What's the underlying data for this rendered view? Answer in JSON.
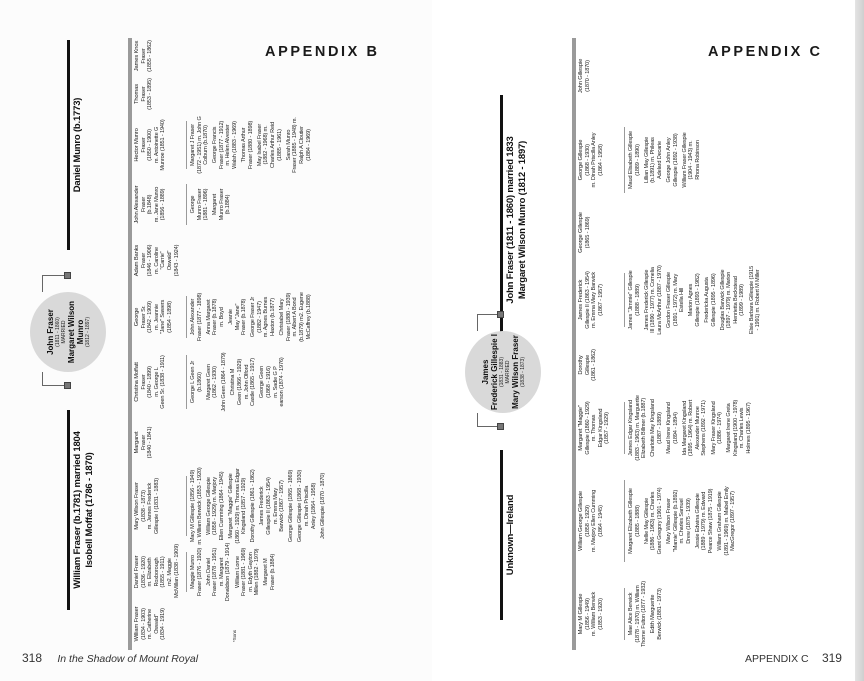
{
  "left_page": {
    "heading": "APPENDIX B",
    "page_number": "318",
    "running_title": "In the Shadow of Mount Royal",
    "footnote": "*Sons",
    "chart": {
      "paternal_parents": [
        "William Fraser (b.1781) married 1804",
        "Isobell Moffat (1786 - 1870)"
      ],
      "maternal_parents": [
        "Daniel Munro (b.1773)"
      ],
      "couple": {
        "husband": "John Fraser",
        "husband_dates": "(1811 - 1860)",
        "married": "MARRIED",
        "wife_line1": "Margaret Wilson",
        "wife_line2": "Munro",
        "wife_dates": "(1812 - 1897)"
      },
      "children": [
        {
          "lines": [
            "William Fraser",
            "(1834 - 1903)",
            "m. Catherine",
            "Oswald\"",
            "(1834 - 1919)"
          ],
          "grandchildren": []
        },
        {
          "lines": [
            "Daniel Fraser",
            "(1836 - 1920)",
            "m. Elizabeth",
            "Roxborough",
            "(1855 - 1911)",
            "m2. Maggie",
            "McMillan (1838 - 1909)"
          ],
          "grandchildren": [
            [
              "Maggie Munro",
              "Fraser (1876 - 1920)"
            ],
            [
              "John Daniel",
              "Fraser (1878 - 1951)",
              "m. Margaret",
              "Donaldson (1879 - 1914)"
            ],
            [
              "William Lorne",
              "Fraser (1881 - 1969)",
              "m. Edyth Gayton",
              "Millen (1882 - 1979)"
            ],
            [
              "Margaret M",
              "Fraser (b.1884)"
            ]
          ]
        },
        {
          "lines": [
            "Mary Wilson Fraser",
            "(1838 - 1873)",
            "m. James Frederick",
            "Gillespie I (1831 - 1883)"
          ],
          "grandchildren": [
            [
              "Mary M Gillespie (1856 - 1949)",
              "m. William Berwick (1853 - 1920)"
            ],
            [
              "William George Gillespie",
              "(1858 - 1929) m. Marjory",
              "Ellen Cumming (1864 - 1945)"
            ],
            [
              "Margaret \"Maggie\" Gillespie",
              "(1860 - 1929) m. Thomas Edgar",
              "Kingsland (1857 - 1929)"
            ],
            [
              "Dorothy Gillespie (1861 - 1862)"
            ],
            [
              "James Frederick",
              "Gillespie II (1863 - 1954)",
              "m. Emma Mary",
              "Barwick (1867 - 1957)"
            ],
            [
              "George Gillespie (1865 - 1869)"
            ],
            [
              "George Gillespie (1868 - 1930)",
              "m. Dinah Priscilla",
              "Anley (1864 - 1958)"
            ],
            [
              "John Gillespie (1870 - 1870)"
            ]
          ]
        },
        {
          "lines": [
            "Margaret",
            "Fraser",
            "(1840 - 1841)"
          ],
          "grandchildren": []
        },
        {
          "lines": [
            "Christina Moffatt",
            "Fraser",
            "(1840 - 1899)",
            "m. George L",
            "Geen Sr. (1838 - 1911)"
          ],
          "grandchildren": [
            [
              "George L Geen Jr",
              "(b.1860)"
            ],
            [
              "Margaret Geen",
              "(1862 - 1930)"
            ],
            [
              "John Geen (1864 - 1879)"
            ],
            [
              "Christina M",
              "Geen (1866 - 1929)",
              "m. John Olford",
              "Castle (1865 - 1917)"
            ],
            [
              "George Geen",
              "(1868 - 1916)",
              "m. Sadie G P",
              "earson (1874 - 1976)"
            ]
          ]
        },
        {
          "lines": [
            "George",
            "Fraser Sr.",
            "(1842 - 1909)",
            "m. Jeannie",
            "\"Jane\" Sawers",
            "(1854 - 1898)"
          ],
          "grandchildren": [
            [
              "John Alexander",
              "Fraser (1877 - 1898)"
            ],
            [
              "Anna Margaret",
              "Fraser (b.1878)",
              "m. Boyd"
            ],
            [
              "Jeanie",
              "May \"Jane\"",
              "Fraser (b.1878)"
            ],
            [
              "George Fraser Jr",
              "(1882 - 1947)",
              "m. Agnes Burnes",
              "Haxton (b.1877)"
            ],
            [
              "Christabel Mary",
              "Fraser (1880 - 1939)",
              "m. Albert A Bond",
              "(b.1879) m2. Eugene",
              "McCaffrey (b.1888)"
            ]
          ]
        },
        {
          "lines": [
            "Adam Banks",
            "Fraser",
            "(1846 - 1906)",
            "m. Caroline",
            "\"Carrie\"",
            "Oswald\"",
            "(1843 - 1924)"
          ],
          "grandchildren": []
        },
        {
          "lines": [
            "John Alexander",
            "Fraser",
            "(b.1848)",
            "m. Jane Munro",
            "(1856 - 1889)"
          ],
          "grandchildren": [
            [
              "George",
              "Munro Fraser",
              "(1881 - 1896)"
            ],
            [
              "Margaret",
              "Munro Fraser",
              "(b.1884)"
            ]
          ]
        },
        {
          "lines": [
            "Hector Munro",
            "Fraser",
            "(1850 - 1900)",
            "m. Antoinette G",
            "Munroe (1851 - 1940)"
          ],
          "grandchildren": [
            [
              "Margaret J Fraser",
              "(1872 - 1951) m. John G",
              "Colburn (b.1870)"
            ],
            [
              "George Francis",
              "Fraser (1877 - 1912)",
              "m. Helen Alvester",
              "Walsh (1883 - 1969)"
            ],
            [
              "Thomas Arthur",
              "Fraser (1880 - 1898)"
            ],
            [
              "May Isabel Fraser",
              "(1882 - 1968) m.",
              "Charles Arthur Reid",
              "(1885 - 1961)"
            ],
            [
              "Sarah Munro",
              "Fraser (1885 - 1948) m.",
              "Ralph A Cloutier",
              "(1884 - 1969)"
            ]
          ]
        },
        {
          "lines": [
            "Thomas",
            "Fraser",
            "(1853 - 1895)"
          ],
          "grandchildren": []
        },
        {
          "lines": [
            "James Knox",
            "Fraser",
            "(1855 - 1862)"
          ],
          "grandchildren": []
        }
      ]
    }
  },
  "right_page": {
    "heading": "APPENDIX C",
    "page_number": "319",
    "running_title": "APPENDIX C",
    "chart": {
      "paternal_parents": [
        "Unknown—Ireland"
      ],
      "maternal_parents": [
        "John Fraser (1811 - 1860) married 1833",
        "Margaret Wilson Munro (1812 - 1897)"
      ],
      "couple": {
        "husband": "James",
        "husband_line2": "Frederick Gillespie I",
        "husband_dates": "(1831 - 1883)",
        "married": "MARRIED",
        "wife_line1": "Mary Wilson Fraser",
        "wife_dates": "(1838 - 1873)"
      },
      "children": [
        {
          "lines": [
            "Mary M Gillespie",
            "(1856 - 1949)",
            "m. William Berwick",
            "(1853 - 1920)"
          ],
          "grandchildren": [
            [
              "Mae Alice Berwick",
              "(1878 - 1970) m. William",
              "Thorne Fulton (1877 - 1932)"
            ],
            [
              "Edith Marguerite",
              "Berwick (1881 - 1973)"
            ]
          ]
        },
        {
          "lines": [
            "William George Gillespie",
            "(1858 - 1929)",
            "m. Marjory Ellen Cumming",
            "(1864 - 1945)"
          ],
          "grandchildren": [
            [
              "Margaret Elizabeth Gillespie",
              "(1885 - 1888)"
            ],
            [
              "Nellie May Gillespie",
              "(1886 - 1963) m. Charles",
              "Grant Gregory (1901 - 1974)"
            ],
            [
              "Mary Wilson Fraser",
              "\"Mamie\" Gillespie (b.1892)",
              "m. Charles Samuel",
              "Drew (1875 - 1939)"
            ],
            [
              "Jessie Edwina Gillespie",
              "(1889 - 1979) m. Edward",
              "Pearce Shaw (1875 - 1919)"
            ],
            [
              "William Graham Gillespie",
              "(1891 - 1969) m. Mabel Emily",
              "MacGregor (1897 - 1957)"
            ]
          ]
        },
        {
          "lines": [
            "Margaret \"Maggie\"",
            "Gillespie (1860 - 1929)",
            "m. Thomas",
            "Edgar Kingsland",
            "(1857 - 1929)"
          ],
          "grandchildren": [
            [
              "James Edgar Kingsland",
              "(1883 - 1963) m. Marguerite",
              "Elizabeth Billmer (b.1887)"
            ],
            [
              "Charlotte May Kingsland",
              "(1887 - 1889)"
            ],
            [
              "Maud Irene Kingsland",
              "(1894 - 1894)"
            ],
            [
              "Ida Margaret Kingsland",
              "(1895 - 1964) m. Robert",
              "Alexander Munroe",
              "Stephens (1892 - 1971)"
            ],
            [
              "Mary Fraser Kingsland",
              "(1886 - 1974)"
            ],
            [
              "Margaret Irene Greta",
              "Kingsland (1900 - 1978)",
              "m. Charles Lewis",
              "Holmes (1895 - 1967)"
            ]
          ]
        },
        {
          "lines": [
            "Dorothy",
            "Gillespie",
            "(1861 - 1862)"
          ],
          "grandchildren": []
        },
        {
          "lines": [
            "James Frederick",
            "Gillespie II (1863 - 1954)",
            "m. Emma Mary Barwick",
            "(1867 - 1957)"
          ],
          "grandchildren": [
            [
              "James \"Jimmie\" Gillespie",
              "(1888 - 1889)"
            ],
            [
              "James Frederick Gillespie",
              "III (1890 - 1977) m. Cornelia",
              "Laura McArthur (1887 - 1970)"
            ],
            [
              "Gordon Fraser Gillespie",
              "(1891 - 1972) m. Mary",
              "Estella Hill"
            ],
            [
              "Marion Agnes",
              "Gillespie (1893 - 1982)"
            ],
            [
              "Fredericka Augusta",
              "Gillespie (1895 - 1896)"
            ],
            [
              "Douglas Barwick Gillespie",
              "(1897 - 1979) m. Marion",
              "Henrietta Beckstead",
              "(1899 - 1989)"
            ],
            [
              "Elsie Barbara Gillespie (1915",
              "- 1991) m. Robert M Miller"
            ]
          ]
        },
        {
          "lines": [
            "George Gillespie",
            "(1865 - 1869)"
          ],
          "grandchildren": []
        },
        {
          "lines": [
            "George Gillespie",
            "(1868 - 1930)",
            "m. Dinah Priscilla Anley",
            "(1864 - 1958)"
          ],
          "grandchildren": [
            [
              "Maud Elisabeth Gillespie",
              "(1889 - 1890)"
            ],
            [
              "Lillian May Gillespie",
              "(b.1891) m. Phileas",
              "Adelard Decarie"
            ],
            [
              "George John Anley",
              "Gillespie (1892 - 1938)"
            ],
            [
              "William Fraser Gillespie",
              "(1904 - 1943) m.",
              "Rhona Robinson"
            ]
          ]
        },
        {
          "lines": [
            "John Gillespie",
            "(1870 - 1870)"
          ],
          "grandchildren": []
        }
      ]
    }
  }
}
